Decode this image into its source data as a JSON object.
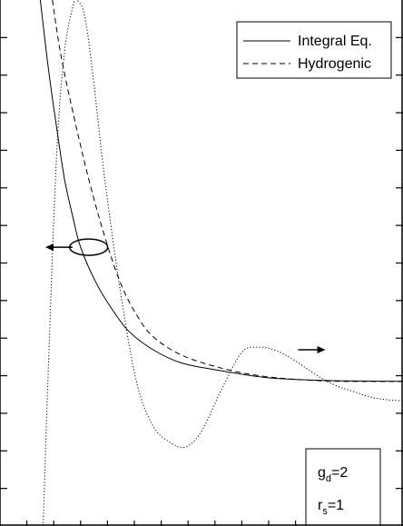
{
  "chart_data": {
    "type": "line",
    "title": "",
    "xlabel": "",
    "ylabel": "",
    "xlim": [
      0,
      1
    ],
    "ylim_left": [
      0,
      1
    ],
    "ylim_right": [
      0,
      1
    ],
    "grid": false,
    "legend_position": "top-right",
    "series": [
      {
        "name": "Integral Eq.",
        "style": "solid",
        "axis": "left",
        "x": [
          0.1,
          0.12,
          0.14,
          0.16,
          0.18,
          0.2,
          0.24,
          0.28,
          0.32,
          0.38,
          0.45,
          0.55,
          0.65,
          0.75,
          0.85,
          1.0
        ],
        "y": [
          1.0,
          0.87,
          0.76,
          0.66,
          0.59,
          0.53,
          0.46,
          0.41,
          0.37,
          0.335,
          0.31,
          0.295,
          0.283,
          0.278,
          0.276,
          0.275
        ]
      },
      {
        "name": "Hydrogenic",
        "style": "dashed",
        "axis": "left",
        "x": [
          0.13,
          0.15,
          0.18,
          0.22,
          0.26,
          0.3,
          0.34,
          0.38,
          0.45,
          0.55,
          0.65,
          0.75,
          0.85,
          1.0
        ],
        "y": [
          1.0,
          0.9,
          0.79,
          0.66,
          0.55,
          0.46,
          0.4,
          0.36,
          0.325,
          0.3,
          0.285,
          0.278,
          0.275,
          0.275
        ]
      },
      {
        "name": "",
        "style": "dotted",
        "axis": "right",
        "x": [
          0.107,
          0.12,
          0.14,
          0.16,
          0.18,
          0.19,
          0.21,
          0.23,
          0.26,
          0.3,
          0.34,
          0.38,
          0.42,
          0.46,
          0.5,
          0.55,
          0.6,
          0.64,
          0.68,
          0.72,
          0.76,
          0.8,
          0.84,
          0.88,
          0.92,
          0.96,
          1.0
        ],
        "y": [
          0.0,
          0.3,
          0.7,
          0.9,
          0.985,
          1.0,
          0.97,
          0.86,
          0.66,
          0.44,
          0.27,
          0.19,
          0.16,
          0.15,
          0.18,
          0.26,
          0.33,
          0.34,
          0.335,
          0.32,
          0.3,
          0.28,
          0.265,
          0.255,
          0.245,
          0.24,
          0.238
        ]
      }
    ],
    "annotations": [
      {
        "kind": "ellipse",
        "x": 0.22,
        "y": 0.53,
        "axis": "left"
      },
      {
        "kind": "arrow",
        "direction": "left",
        "x": 0.18,
        "y": 0.53,
        "points_to_axis": "left"
      },
      {
        "kind": "arrow",
        "direction": "right",
        "x": 0.74,
        "y": 0.335,
        "points_to_axis": "right"
      }
    ],
    "parameters": {
      "g_symbol": "g",
      "g_sub": "d",
      "g_value": "=2",
      "r_symbol": "r",
      "r_sub": "s",
      "r_value": "=1"
    }
  }
}
